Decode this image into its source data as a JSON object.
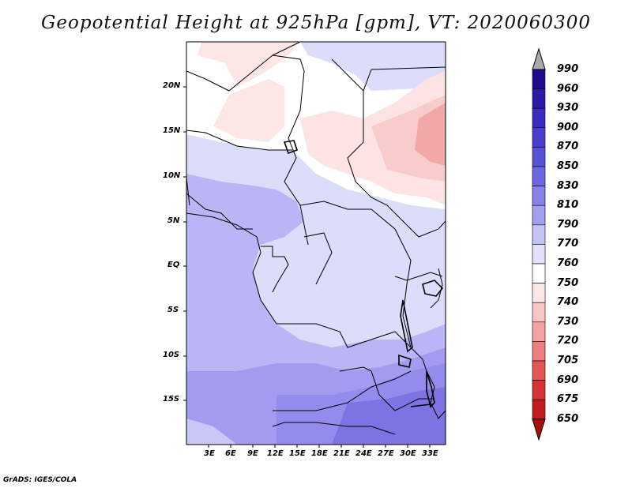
{
  "title": "Geopotential Height at 925hPa [gpm], VT: 2020060300",
  "credit": "GrADS: IGES/COLA",
  "lat_ticks": [
    "20N",
    "15N",
    "10N",
    "5N",
    "EQ",
    "5S",
    "10S",
    "15S"
  ],
  "lon_ticks": [
    "3E",
    "6E",
    "9E",
    "12E",
    "15E",
    "18E",
    "21E",
    "24E",
    "27E",
    "30E",
    "33E"
  ],
  "colorbar": {
    "levels": [
      "990",
      "960",
      "930",
      "900",
      "870",
      "850",
      "830",
      "810",
      "790",
      "770",
      "760",
      "750",
      "740",
      "730",
      "720",
      "705",
      "690",
      "675",
      "650"
    ],
    "colors": [
      "#1e0a8c",
      "#2a1aa6",
      "#3a2cbe",
      "#4a3fcc",
      "#5a52d6",
      "#6e68e0",
      "#8781e8",
      "#a39ff0",
      "#c4c3f6",
      "#e2e2fb",
      "#ffffff",
      "#fde6e6",
      "#f9c6c6",
      "#f3a3a3",
      "#ec7e7e",
      "#e25656",
      "#d43434",
      "#c21d1d",
      "#a90f0f"
    ],
    "top_arrow_color": "#aaaaaa",
    "bottom_arrow_color": "#a90f0f"
  },
  "colors": {
    "land_blue_light": "#d9d9fb",
    "land_blue_mid": "#b8b4f6",
    "land_blue_dark": "#9a92ee",
    "land_blue_darker": "#7d73e3",
    "red_light": "#fde3e3",
    "red_mid": "#f9c7c7",
    "red_dark": "#f3a3a3",
    "border": "#000000"
  }
}
